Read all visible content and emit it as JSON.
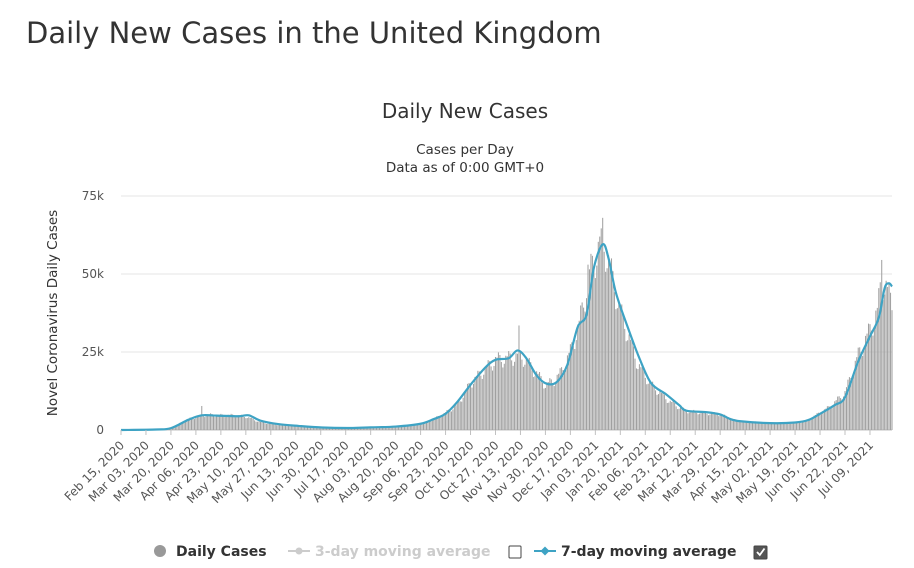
{
  "page": {
    "title": "Daily New Cases in the United Kingdom"
  },
  "chart_data": {
    "type": "bar",
    "title": "Daily New Cases",
    "subtitle_lines": [
      "Cases per Day",
      "Data as of 0:00 GMT+0"
    ],
    "ylabel": "Novel Coronavirus Daily Cases",
    "xlabel": "",
    "ylim": [
      0,
      75000
    ],
    "y_ticks": [
      {
        "value": 0,
        "label": "0"
      },
      {
        "value": 25000,
        "label": "25k"
      },
      {
        "value": 50000,
        "label": "50k"
      },
      {
        "value": 75000,
        "label": "75k"
      }
    ],
    "x_tick_labels": [
      "Feb 15, 2020",
      "Mar 03, 2020",
      "Mar 20, 2020",
      "Apr 06, 2020",
      "Apr 23, 2020",
      "May 10, 2020",
      "May 27, 2020",
      "Jun 13, 2020",
      "Jun 30, 2020",
      "Jul 17, 2020",
      "Aug 03, 2020",
      "Aug 20, 2020",
      "Sep 06, 2020",
      "Sep 23, 2020",
      "Oct 10, 2020",
      "Oct 27, 2020",
      "Nov 13, 2020",
      "Nov 30, 2020",
      "Dec 17, 2020",
      "Jan 03, 2021",
      "Jan 20, 2021",
      "Feb 06, 2021",
      "Feb 23, 2021",
      "Mar 12, 2021",
      "Mar 29, 2021",
      "Apr 15, 2021",
      "May 02, 2021",
      "May 19, 2021",
      "Jun 05, 2021",
      "Jun 22, 2021",
      "Jul 09, 2021"
    ],
    "x_range": [
      "Feb 15, 2020",
      "Jul 24, 2021"
    ],
    "grid": true,
    "legend_position": "bottom-center",
    "colors": {
      "bars": "#a0a0a0",
      "avg7": "#3ea3c4",
      "avg3": "#cccccc",
      "grid": "#e6e6e6"
    },
    "series": [
      {
        "name": "Daily Cases",
        "type": "bar",
        "knots": [
          {
            "date": "Feb 15, 2020",
            "value": 0
          },
          {
            "date": "Mar 05, 2020",
            "value": 50
          },
          {
            "date": "Mar 20, 2020",
            "value": 650
          },
          {
            "date": "Apr 01, 2020",
            "value": 3500
          },
          {
            "date": "Apr 10, 2020",
            "value": 4600
          },
          {
            "date": "Apr 15, 2020",
            "value": 4900
          },
          {
            "date": "Apr 20, 2020",
            "value": 4700
          },
          {
            "date": "May 01, 2020",
            "value": 4700
          },
          {
            "date": "May 10, 2020",
            "value": 4300
          },
          {
            "date": "May 20, 2020",
            "value": 2500
          },
          {
            "date": "Jun 01, 2020",
            "value": 1700
          },
          {
            "date": "Jun 15, 2020",
            "value": 1200
          },
          {
            "date": "Jul 01, 2020",
            "value": 750
          },
          {
            "date": "Jul 15, 2020",
            "value": 600
          },
          {
            "date": "Aug 01, 2020",
            "value": 800
          },
          {
            "date": "Aug 20, 2020",
            "value": 1050
          },
          {
            "date": "Sep 06, 2020",
            "value": 1900
          },
          {
            "date": "Sep 15, 2020",
            "value": 3500
          },
          {
            "date": "Sep 23, 2020",
            "value": 5500
          },
          {
            "date": "Oct 01, 2020",
            "value": 8000
          },
          {
            "date": "Oct 10, 2020",
            "value": 15000
          },
          {
            "date": "Oct 20, 2020",
            "value": 19500
          },
          {
            "date": "Oct 27, 2020",
            "value": 22500
          },
          {
            "date": "Nov 05, 2020",
            "value": 23000
          },
          {
            "date": "Nov 13, 2020",
            "value": 24000
          },
          {
            "date": "Nov 20, 2020",
            "value": 20500
          },
          {
            "date": "Nov 30, 2020",
            "value": 14500
          },
          {
            "date": "Dec 05, 2020",
            "value": 15500
          },
          {
            "date": "Dec 10, 2020",
            "value": 18000
          },
          {
            "date": "Dec 17, 2020",
            "value": 25000
          },
          {
            "date": "Dec 23, 2020",
            "value": 34000
          },
          {
            "date": "Dec 30, 2020",
            "value": 50000
          },
          {
            "date": "Jan 05, 2021",
            "value": 58000
          },
          {
            "date": "Jan 09, 2021",
            "value": 59500
          },
          {
            "date": "Jan 13, 2021",
            "value": 52000
          },
          {
            "date": "Jan 20, 2021",
            "value": 38000
          },
          {
            "date": "Feb 01, 2021",
            "value": 21000
          },
          {
            "date": "Feb 10, 2021",
            "value": 14500
          },
          {
            "date": "Feb 23, 2021",
            "value": 9000
          },
          {
            "date": "Mar 05, 2021",
            "value": 6200
          },
          {
            "date": "Mar 12, 2021",
            "value": 5800
          },
          {
            "date": "Mar 29, 2021",
            "value": 5000
          },
          {
            "date": "Apr 08, 2021",
            "value": 3200
          },
          {
            "date": "Apr 15, 2021",
            "value": 2700
          },
          {
            "date": "May 02, 2021",
            "value": 2200
          },
          {
            "date": "May 19, 2021",
            "value": 2300
          },
          {
            "date": "May 26, 2021",
            "value": 2800
          },
          {
            "date": "Jun 05, 2021",
            "value": 5500
          },
          {
            "date": "Jun 12, 2021",
            "value": 7500
          },
          {
            "date": "Jun 22, 2021",
            "value": 12000
          },
          {
            "date": "Jul 01, 2021",
            "value": 24000
          },
          {
            "date": "Jul 09, 2021",
            "value": 32000
          },
          {
            "date": "Jul 14, 2021",
            "value": 38000
          },
          {
            "date": "Jul 17, 2021",
            "value": 48000
          },
          {
            "date": "Jul 20, 2021",
            "value": 46000
          },
          {
            "date": "Jul 24, 2021",
            "value": 40000
          }
        ],
        "spikes": [
          {
            "date": "Apr 10, 2020",
            "value": 7700
          },
          {
            "date": "Nov 12, 2020",
            "value": 33500
          },
          {
            "date": "Dec 29, 2020",
            "value": 53000
          },
          {
            "date": "Jan 08, 2021",
            "value": 68000
          },
          {
            "date": "Jan 06, 2021",
            "value": 62000
          },
          {
            "date": "Jul 17, 2021",
            "value": 54500
          }
        ]
      },
      {
        "name": "7-day moving average",
        "type": "line",
        "knots": [
          {
            "date": "Feb 15, 2020",
            "value": 0
          },
          {
            "date": "Mar 10, 2020",
            "value": 150
          },
          {
            "date": "Mar 20, 2020",
            "value": 600
          },
          {
            "date": "Apr 01, 2020",
            "value": 3300
          },
          {
            "date": "Apr 10, 2020",
            "value": 4700
          },
          {
            "date": "Apr 20, 2020",
            "value": 4600
          },
          {
            "date": "May 05, 2020",
            "value": 4400
          },
          {
            "date": "May 12, 2020",
            "value": 4700
          },
          {
            "date": "May 20, 2020",
            "value": 3000
          },
          {
            "date": "Jun 01, 2020",
            "value": 1900
          },
          {
            "date": "Jun 15, 2020",
            "value": 1300
          },
          {
            "date": "Jul 01, 2020",
            "value": 800
          },
          {
            "date": "Jul 20, 2020",
            "value": 650
          },
          {
            "date": "Aug 03, 2020",
            "value": 850
          },
          {
            "date": "Aug 20, 2020",
            "value": 1100
          },
          {
            "date": "Sep 06, 2020",
            "value": 2000
          },
          {
            "date": "Sep 15, 2020",
            "value": 3500
          },
          {
            "date": "Sep 23, 2020",
            "value": 5200
          },
          {
            "date": "Oct 01, 2020",
            "value": 9000
          },
          {
            "date": "Oct 10, 2020",
            "value": 14500
          },
          {
            "date": "Oct 20, 2020",
            "value": 20000
          },
          {
            "date": "Oct 27, 2020",
            "value": 22500
          },
          {
            "date": "Nov 05, 2020",
            "value": 23000
          },
          {
            "date": "Nov 11, 2020",
            "value": 25500
          },
          {
            "date": "Nov 17, 2020",
            "value": 23000
          },
          {
            "date": "Nov 24, 2020",
            "value": 17500
          },
          {
            "date": "Dec 01, 2020",
            "value": 14800
          },
          {
            "date": "Dec 08, 2020",
            "value": 15500
          },
          {
            "date": "Dec 15, 2020",
            "value": 21000
          },
          {
            "date": "Dec 22, 2020",
            "value": 33000
          },
          {
            "date": "Dec 28, 2020",
            "value": 37000
          },
          {
            "date": "Jan 02, 2021",
            "value": 52000
          },
          {
            "date": "Jan 08, 2021",
            "value": 59500
          },
          {
            "date": "Jan 12, 2021",
            "value": 55000
          },
          {
            "date": "Jan 17, 2021",
            "value": 44000
          },
          {
            "date": "Jan 25, 2021",
            "value": 33000
          },
          {
            "date": "Feb 02, 2021",
            "value": 23000
          },
          {
            "date": "Feb 10, 2021",
            "value": 15000
          },
          {
            "date": "Feb 20, 2021",
            "value": 11500
          },
          {
            "date": "Mar 01, 2021",
            "value": 8000
          },
          {
            "date": "Mar 06, 2021",
            "value": 6200
          },
          {
            "date": "Mar 20, 2021",
            "value": 5700
          },
          {
            "date": "Mar 29, 2021",
            "value": 5000
          },
          {
            "date": "Apr 05, 2021",
            "value": 3500
          },
          {
            "date": "Apr 12, 2021",
            "value": 2800
          },
          {
            "date": "May 02, 2021",
            "value": 2200
          },
          {
            "date": "May 19, 2021",
            "value": 2400
          },
          {
            "date": "May 28, 2021",
            "value": 3200
          },
          {
            "date": "Jun 05, 2021",
            "value": 5200
          },
          {
            "date": "Jun 15, 2021",
            "value": 8000
          },
          {
            "date": "Jun 22, 2021",
            "value": 10500
          },
          {
            "date": "Jul 01, 2021",
            "value": 22000
          },
          {
            "date": "Jul 09, 2021",
            "value": 30000
          },
          {
            "date": "Jul 15, 2021",
            "value": 36000
          },
          {
            "date": "Jul 19, 2021",
            "value": 45500
          },
          {
            "date": "Jul 22, 2021",
            "value": 47000
          },
          {
            "date": "Jul 24, 2021",
            "value": 46000
          }
        ]
      }
    ],
    "legend": [
      {
        "label": "Daily Cases",
        "style": "dot",
        "checkbox": null
      },
      {
        "label": "3-day moving average",
        "style": "line-muted",
        "checkbox": false
      },
      {
        "label": "7-day moving average",
        "style": "line",
        "checkbox": true
      }
    ]
  }
}
